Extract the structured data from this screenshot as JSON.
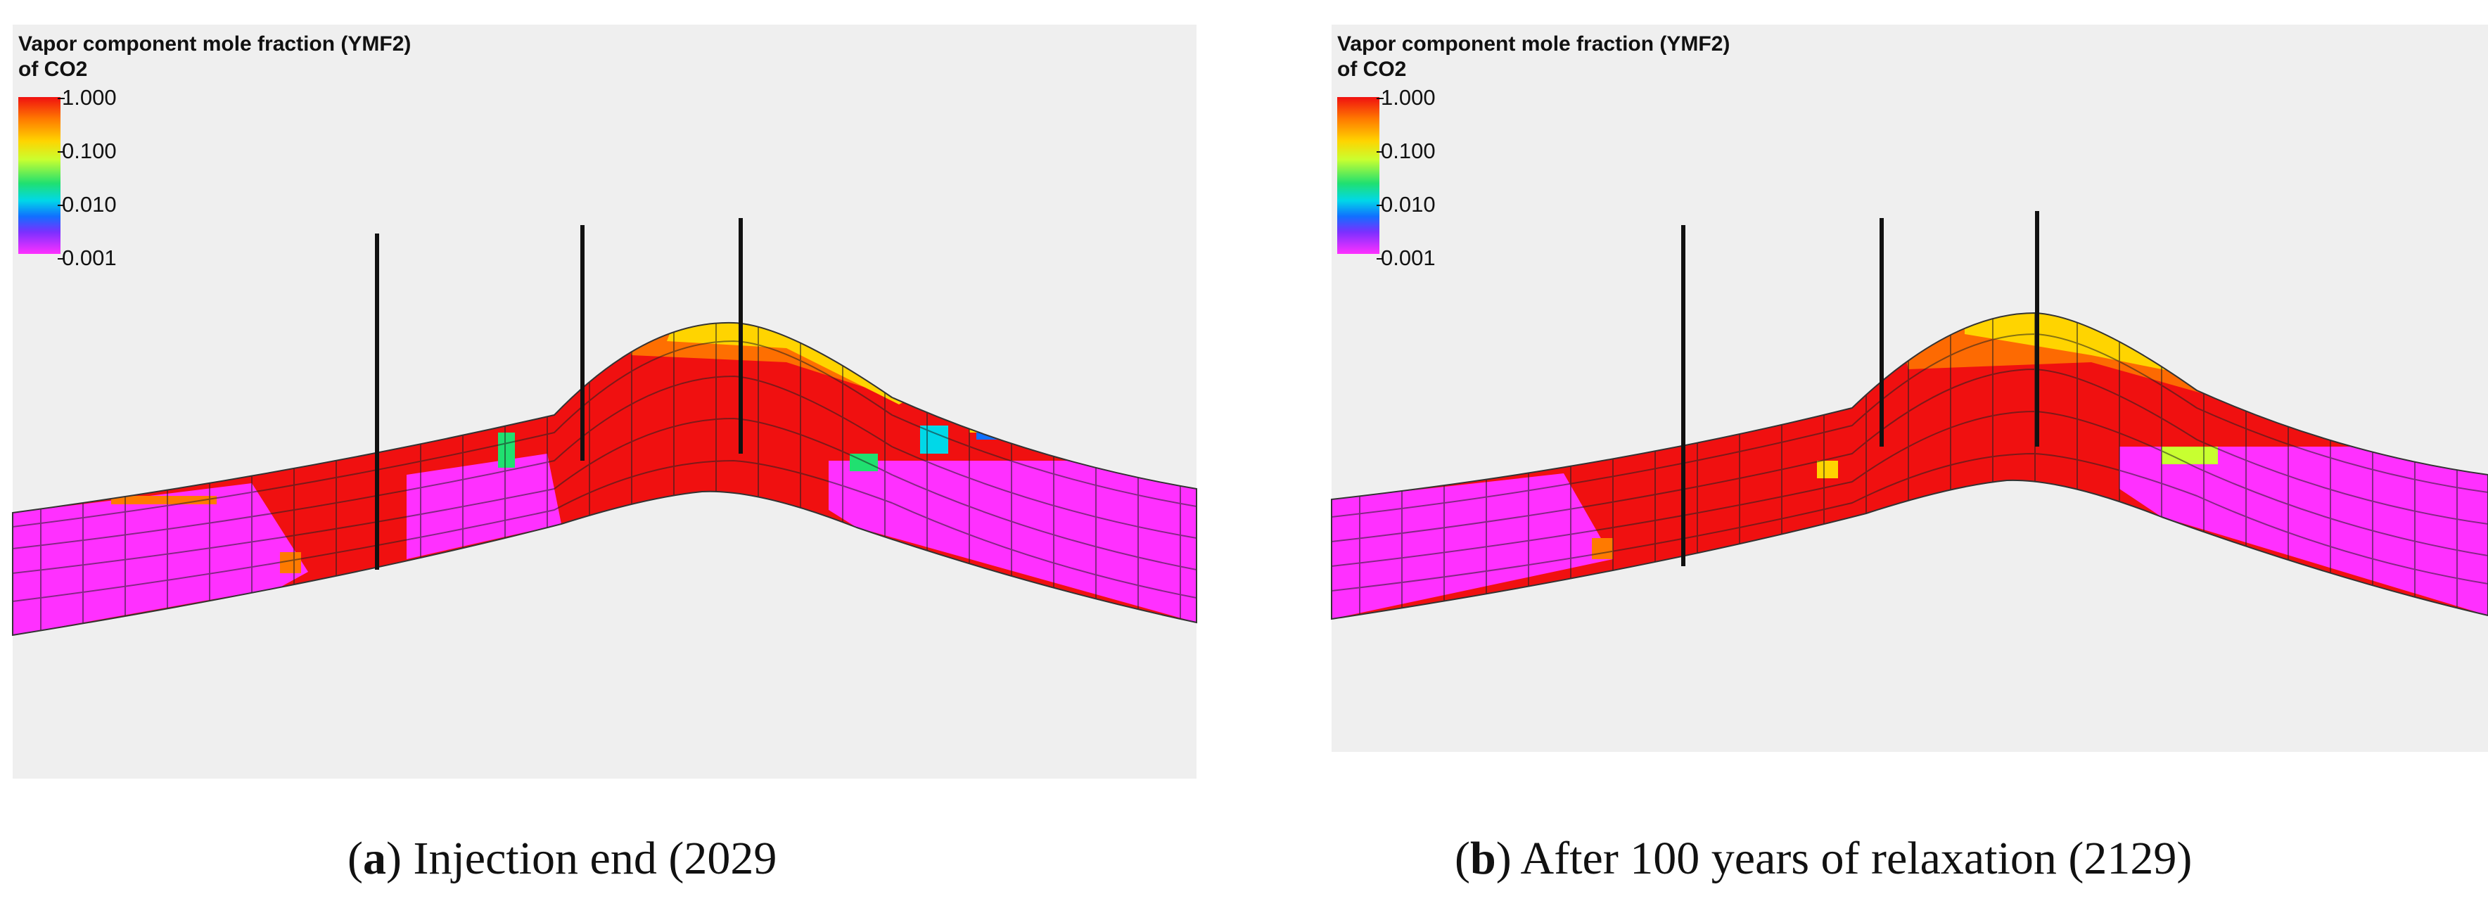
{
  "legend": {
    "title_line1": "Vapor component mole fraction (YMF2)",
    "title_line2": "of CO2",
    "ticks": [
      "1.000",
      "0.100",
      "0.010",
      "0.001"
    ]
  },
  "panels": [
    {
      "letter": "a",
      "caption": "Injection end (2029"
    },
    {
      "letter": "b",
      "caption": "After 100 years of relaxation (2129)"
    }
  ],
  "colors": {
    "red": "#f01010",
    "orange": "#ff7a00",
    "yellow": "#ffd400",
    "lime": "#c8ff30",
    "green": "#20e070",
    "cyan": "#00d8e8",
    "blue": "#1070ff",
    "magenta": "#ff30ff"
  }
}
